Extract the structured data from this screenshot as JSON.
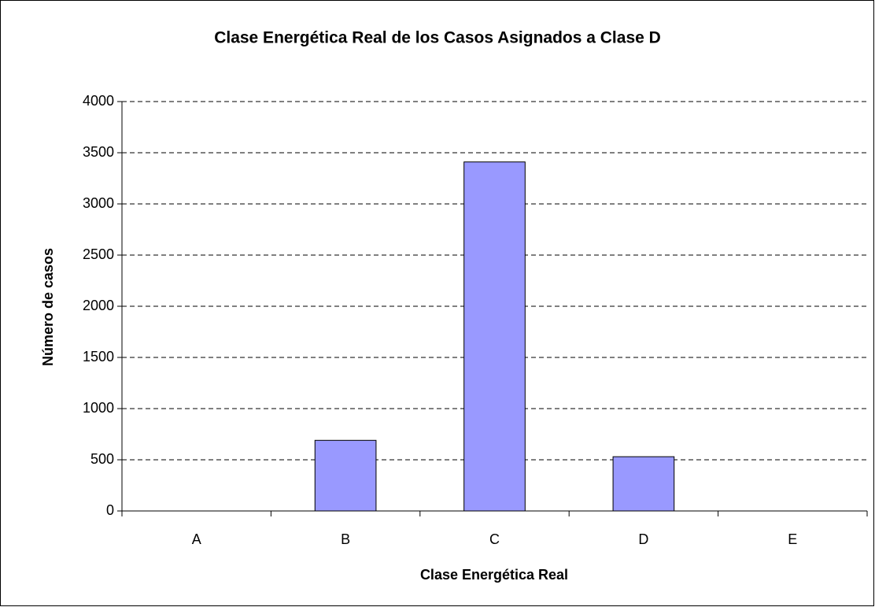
{
  "chart_data": {
    "type": "bar",
    "title": "Clase Energética Real de los Casos Asignados a Clase D",
    "x_label": "Clase Energética Real",
    "y_label": "Número de casos",
    "categories": [
      "A",
      "B",
      "C",
      "D",
      "E"
    ],
    "values": [
      0,
      690,
      3410,
      530,
      0
    ],
    "color": "#9999ff",
    "ylim": [
      0,
      4000
    ],
    "yticks": [
      0,
      500,
      1000,
      1500,
      2000,
      2500,
      3000,
      3500,
      4000
    ],
    "grid": true
  }
}
